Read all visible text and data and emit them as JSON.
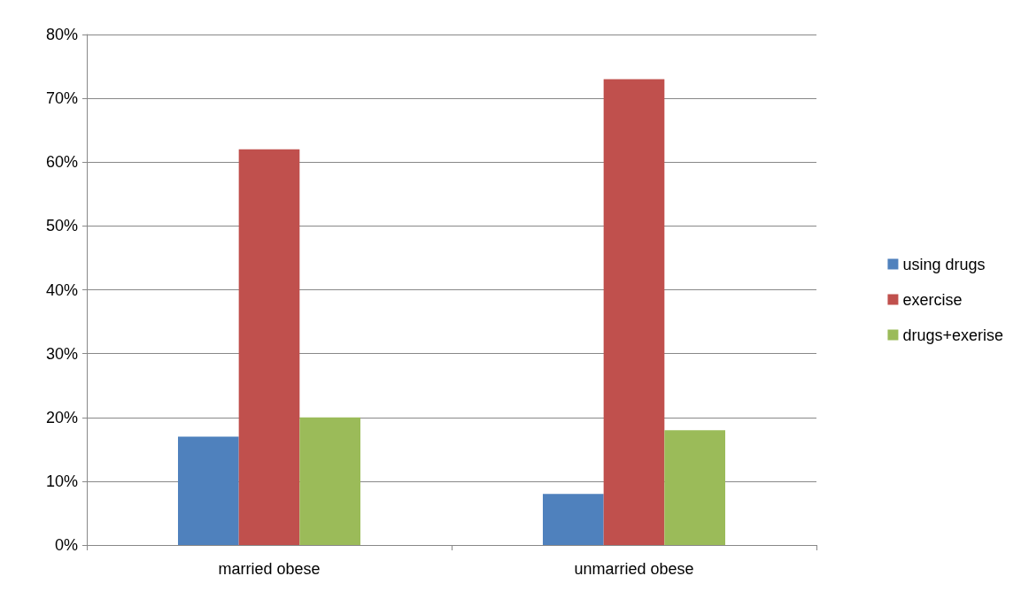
{
  "chart_data": {
    "type": "bar",
    "categories": [
      "married obese",
      "unmarried obese"
    ],
    "series": [
      {
        "name": "using drugs",
        "color": "#4f81bd",
        "values": [
          17,
          8
        ]
      },
      {
        "name": "exercise",
        "color": "#c0504d",
        "values": [
          62,
          73
        ]
      },
      {
        "name": "drugs+exerise",
        "color": "#9bbb59",
        "values": [
          20,
          18
        ]
      }
    ],
    "ylim": [
      0,
      80
    ],
    "yticks": [
      {
        "value": 0,
        "label": "0%"
      },
      {
        "value": 10,
        "label": "10%"
      },
      {
        "value": 20,
        "label": "20%"
      },
      {
        "value": 30,
        "label": "30%"
      },
      {
        "value": 40,
        "label": "40%"
      },
      {
        "value": 50,
        "label": "50%"
      },
      {
        "value": 60,
        "label": "60%"
      },
      {
        "value": 70,
        "label": "70%"
      },
      {
        "value": 80,
        "label": "80%"
      }
    ],
    "grid": "y",
    "legend": "right"
  }
}
